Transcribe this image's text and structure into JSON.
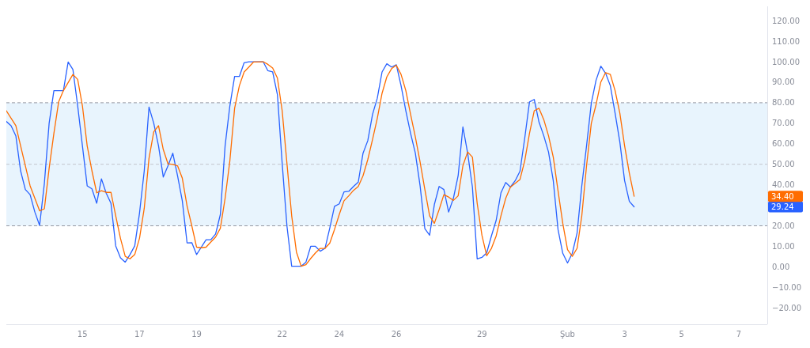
{
  "chart_data": {
    "type": "line",
    "xlim": [
      "--01-12T08:00",
      "--02-08T00:00"
    ],
    "xticks": [
      {
        "value": "--01-15",
        "label": "15"
      },
      {
        "value": "--01-17",
        "label": "17"
      },
      {
        "value": "--01-19",
        "label": "19"
      },
      {
        "value": "--01-22",
        "label": "22"
      },
      {
        "value": "--01-24",
        "label": "24"
      },
      {
        "value": "--01-26",
        "label": "26"
      },
      {
        "value": "--01-29",
        "label": "29"
      },
      {
        "value": "--02-01",
        "label": "Şub"
      },
      {
        "value": "--02-03",
        "label": "3"
      },
      {
        "value": "--02-05",
        "label": "5"
      },
      {
        "value": "--02-07",
        "label": "7"
      }
    ],
    "ylim": [
      -28,
      127
    ],
    "yticks": [
      {
        "value": -20,
        "label": "−20.00"
      },
      {
        "value": -10,
        "label": "−10.00"
      },
      {
        "value": 0,
        "label": "0.00"
      },
      {
        "value": 10,
        "label": "10.00"
      },
      {
        "value": 20,
        "label": "20.00"
      },
      {
        "value": 40,
        "label": "40.00"
      },
      {
        "value": 50,
        "label": "50.00"
      },
      {
        "value": 60,
        "label": "60.00"
      },
      {
        "value": 70,
        "label": "70.00"
      },
      {
        "value": 80,
        "label": "80.00"
      },
      {
        "value": 90,
        "label": "90.00"
      },
      {
        "value": 100,
        "label": "100.00"
      },
      {
        "value": 110,
        "label": "110.00"
      },
      {
        "value": 120,
        "label": "120.00"
      }
    ],
    "grid": false,
    "bands": [
      {
        "axis": "y",
        "from": 20,
        "to": 80,
        "color": "#e8f4fd"
      }
    ],
    "ref_lines": [
      {
        "axis": "y",
        "value": 80,
        "color": "#9598a1",
        "line_style": "dashed"
      },
      {
        "axis": "y",
        "value": 50,
        "color": "#c3c5cc",
        "line_style": "dashed"
      },
      {
        "axis": "y",
        "value": 20,
        "color": "#9598a1",
        "line_style": "dashed"
      }
    ],
    "series": [
      {
        "color": "#2962ff",
        "x": [
          "--01-12T08:00",
          "--01-12T12:00",
          "--01-12T16:00",
          "--01-12T20:00",
          "--01-13T00:00",
          "--01-13T04:00",
          "--01-13T08:00",
          "--01-13T12:00",
          "--01-13T16:00",
          "--01-13T20:00",
          "--01-14T00:00",
          "--01-14T08:00",
          "--01-14T12:00",
          "--01-14T16:00",
          "--01-14T20:00",
          "--01-15T00:00",
          "--01-15T04:00",
          "--01-15T08:00",
          "--01-15T12:00",
          "--01-15T16:00",
          "--01-15T20:00",
          "--01-16T00:00",
          "--01-16T04:00",
          "--01-16T08:00",
          "--01-16T12:00",
          "--01-16T16:00",
          "--01-16T20:00",
          "--01-17T00:00",
          "--01-17T04:00",
          "--01-17T08:00",
          "--01-17T12:00",
          "--01-17T16:00",
          "--01-17T20:00",
          "--01-18T00:00",
          "--01-18T04:00",
          "--01-18T08:00",
          "--01-18T12:00",
          "--01-18T16:00",
          "--01-18T20:00",
          "--01-19T00:00",
          "--01-19T04:00",
          "--01-19T08:00",
          "--01-19T12:00",
          "--01-19T16:00",
          "--01-19T20:00",
          "--01-20T00:00",
          "--01-20T04:00",
          "--01-20T08:00",
          "--01-20T12:00",
          "--01-20T16:00",
          "--01-20T20:00",
          "--01-21T08:00",
          "--01-21T12:00",
          "--01-21T16:00",
          "--01-21T20:00",
          "--01-22T00:00",
          "--01-22T04:00",
          "--01-22T08:00",
          "--01-22T16:00",
          "--01-22T20:00",
          "--01-23T00:00",
          "--01-23T04:00",
          "--01-23T08:00",
          "--01-23T12:00",
          "--01-23T16:00",
          "--01-23T20:00",
          "--01-24T00:00",
          "--01-24T04:00",
          "--01-24T08:00",
          "--01-24T12:00",
          "--01-24T16:00",
          "--01-24T20:00",
          "--01-25T00:00",
          "--01-25T04:00",
          "--01-25T08:00",
          "--01-25T12:00",
          "--01-25T16:00",
          "--01-25T20:00",
          "--01-26T00:00",
          "--01-26T04:00",
          "--01-26T08:00",
          "--01-26T12:00",
          "--01-26T16:00",
          "--01-26T20:00",
          "--01-27T00:00",
          "--01-27T04:00",
          "--01-27T08:00",
          "--01-27T12:00",
          "--01-27T16:00",
          "--01-27T20:00",
          "--01-28T00:00",
          "--01-28T04:00",
          "--01-28T08:00",
          "--01-28T12:00",
          "--01-28T16:00",
          "--01-28T20:00",
          "--01-29T00:00",
          "--01-29T04:00",
          "--01-29T08:00",
          "--01-29T12:00",
          "--01-29T16:00",
          "--01-29T20:00",
          "--01-30T00:00",
          "--01-30T04:00",
          "--01-30T08:00",
          "--01-30T12:00",
          "--01-30T16:00",
          "--01-30T20:00",
          "--01-31T00:00",
          "--01-31T04:00",
          "--01-31T08:00",
          "--01-31T12:00",
          "--01-31T16:00",
          "--01-31T20:00",
          "--02-01T00:00",
          "--02-01T04:00",
          "--02-01T08:00",
          "--02-01T12:00",
          "--02-01T16:00",
          "--02-01T20:00",
          "--02-02T00:00",
          "--02-02T04:00",
          "--02-02T08:00",
          "--02-02T12:00",
          "--02-02T16:00",
          "--02-02T20:00",
          "--02-03T00:00",
          "--02-03T04:00",
          "--02-03T08:00"
        ],
        "values": [
          70.9,
          68.8,
          63.9,
          46.8,
          37.7,
          35.2,
          26.7,
          20.2,
          40.7,
          70,
          85.9,
          85.9,
          99.9,
          96.2,
          78.5,
          59,
          39.5,
          38,
          31,
          42.9,
          35.9,
          31,
          10.2,
          4.4,
          2.3,
          6,
          10.2,
          26.1,
          46.8,
          77.9,
          70,
          59,
          43.8,
          49.3,
          55.4,
          44.4,
          32.2,
          11.7,
          11.8,
          6,
          9.6,
          13.2,
          13.2,
          16,
          25.5,
          59,
          78.5,
          92.8,
          92.8,
          99.5,
          100,
          100,
          95.6,
          95,
          84,
          50.5,
          20,
          0.3,
          0.3,
          2.3,
          10,
          10,
          7.6,
          9,
          18.8,
          29.5,
          30.7,
          36.5,
          36.8,
          39.2,
          41.3,
          55.4,
          61.5,
          74.3,
          82.2,
          95,
          99,
          97.4,
          98.5,
          88.3,
          76.1,
          65.1,
          55.4,
          39.5,
          18.6,
          15.4,
          30.4,
          39.2,
          37.7,
          26.7,
          33.4,
          44.4,
          68.2,
          55.4,
          38.9,
          3.9,
          4.6,
          6.8,
          15.1,
          22.7,
          36.1,
          41.1,
          38.9,
          42,
          46.6,
          62.7,
          80.4,
          81.6,
          70.6,
          63.9,
          56,
          42,
          18.2,
          6.6,
          1.9,
          6.6,
          16.4,
          39.5,
          59,
          79.8,
          91,
          97.8,
          94.4,
          88.3,
          74.9,
          60.8,
          42,
          31.9,
          29.24
        ],
        "line_style": "solid"
      },
      {
        "color": "#ff6d00",
        "x": [
          "--01-12T08:00",
          "--01-12T16:00",
          "--01-12T20:00",
          "--01-13T04:00",
          "--01-13T12:00",
          "--01-13T16:00",
          "--01-13T20:00",
          "--01-14T00:00",
          "--01-14T04:00",
          "--01-14T08:00",
          "--01-14T16:00",
          "--01-14T20:00",
          "--01-15T00:00",
          "--01-15T04:00",
          "--01-15T08:00",
          "--01-15T12:00",
          "--01-15T16:00",
          "--01-15T20:00",
          "--01-16T00:00",
          "--01-16T04:00",
          "--01-16T08:00",
          "--01-16T12:00",
          "--01-16T16:00",
          "--01-16T20:00",
          "--01-17T00:00",
          "--01-17T04:00",
          "--01-17T08:00",
          "--01-17T12:00",
          "--01-17T16:00",
          "--01-17T20:00",
          "--01-18T00:00",
          "--01-18T04:00",
          "--01-18T08:00",
          "--01-18T12:00",
          "--01-18T16:00",
          "--01-18T20:00",
          "--01-19T00:00",
          "--01-19T04:00",
          "--01-19T08:00",
          "--01-19T12:00",
          "--01-19T16:00",
          "--01-19T20:00",
          "--01-20T00:00",
          "--01-20T04:00",
          "--01-20T08:00",
          "--01-20T12:00",
          "--01-20T16:00",
          "--01-20T20:00",
          "--01-21T00:00",
          "--01-21T08:00",
          "--01-21T12:00",
          "--01-21T16:00",
          "--01-21T20:00",
          "--01-22T00:00",
          "--01-22T04:00",
          "--01-22T08:00",
          "--01-22T12:00",
          "--01-22T16:00",
          "--01-22T20:00",
          "--01-23T00:00",
          "--01-23T04:00",
          "--01-23T08:00",
          "--01-23T12:00",
          "--01-23T16:00",
          "--01-23T20:00",
          "--01-24T00:00",
          "--01-24T04:00",
          "--01-24T08:00",
          "--01-24T12:00",
          "--01-24T16:00",
          "--01-24T20:00",
          "--01-25T00:00",
          "--01-25T04:00",
          "--01-25T08:00",
          "--01-25T12:00",
          "--01-25T16:00",
          "--01-25T20:00",
          "--01-26T00:00",
          "--01-26T04:00",
          "--01-26T08:00",
          "--01-26T12:00",
          "--01-26T16:00",
          "--01-26T20:00",
          "--01-27T00:00",
          "--01-27T04:00",
          "--01-27T08:00",
          "--01-27T12:00",
          "--01-27T16:00",
          "--01-27T20:00",
          "--01-28T00:00",
          "--01-28T04:00",
          "--01-28T08:00",
          "--01-28T12:00",
          "--01-28T16:00",
          "--01-28T20:00",
          "--01-29T00:00",
          "--01-29T04:00",
          "--01-29T08:00",
          "--01-29T12:00",
          "--01-29T16:00",
          "--01-29T20:00",
          "--01-30T00:00",
          "--01-30T04:00",
          "--01-30T08:00",
          "--01-30T12:00",
          "--01-30T16:00",
          "--01-30T20:00",
          "--01-31T00:00",
          "--01-31T04:00",
          "--01-31T08:00",
          "--01-31T12:00",
          "--01-31T16:00",
          "--01-31T20:00",
          "--02-01T00:00",
          "--02-01T04:00",
          "--02-01T08:00",
          "--02-01T12:00",
          "--02-01T16:00",
          "--02-01T20:00",
          "--02-02T00:00",
          "--02-02T04:00",
          "--02-02T08:00",
          "--02-02T12:00",
          "--02-02T16:00",
          "--02-02T20:00",
          "--02-03T00:00",
          "--02-03T04:00",
          "--02-03T08:00"
        ],
        "values": [
          76.1,
          68.8,
          59,
          39.5,
          27.3,
          28.3,
          48,
          65.1,
          80.4,
          85.9,
          93.8,
          91.4,
          78.5,
          59,
          46.8,
          36.1,
          37.1,
          36.3,
          36.3,
          24.9,
          13.9,
          5.1,
          3.9,
          6,
          13.9,
          28.5,
          52.9,
          65.8,
          68.8,
          57.2,
          50.2,
          49.9,
          49.3,
          43.2,
          29.7,
          20,
          9.6,
          9.3,
          9.6,
          12.1,
          14.5,
          18.8,
          33.4,
          51.7,
          77.3,
          88.3,
          95,
          97.4,
          99.9,
          100,
          98.7,
          96.9,
          92,
          76.1,
          50.5,
          24.9,
          7.2,
          0.3,
          1.1,
          4.1,
          6.8,
          9,
          9,
          11.5,
          18.2,
          25.5,
          32.2,
          34.6,
          37.3,
          39.2,
          44.4,
          52.3,
          62.1,
          72.4,
          84.6,
          92.6,
          96.6,
          98.3,
          93.8,
          85.9,
          74.3,
          63.3,
          51.1,
          37.7,
          24.9,
          21.2,
          27.9,
          35.2,
          34,
          32.4,
          34.6,
          49.3,
          56,
          53.5,
          31,
          15.4,
          5.4,
          9,
          15.1,
          24.9,
          33.4,
          38.9,
          40.7,
          42.6,
          51.7,
          65.1,
          76.1,
          77.3,
          71.8,
          63.9,
          53.5,
          37.1,
          21.2,
          8.4,
          5.1,
          9,
          24.9,
          49.3,
          70,
          79.1,
          90.1,
          94.7,
          93.8,
          85.9,
          74.9,
          59,
          45.6,
          34.4
        ],
        "line_style": "solid"
      }
    ],
    "annotations": [
      "29.24",
      "34.40"
    ]
  }
}
